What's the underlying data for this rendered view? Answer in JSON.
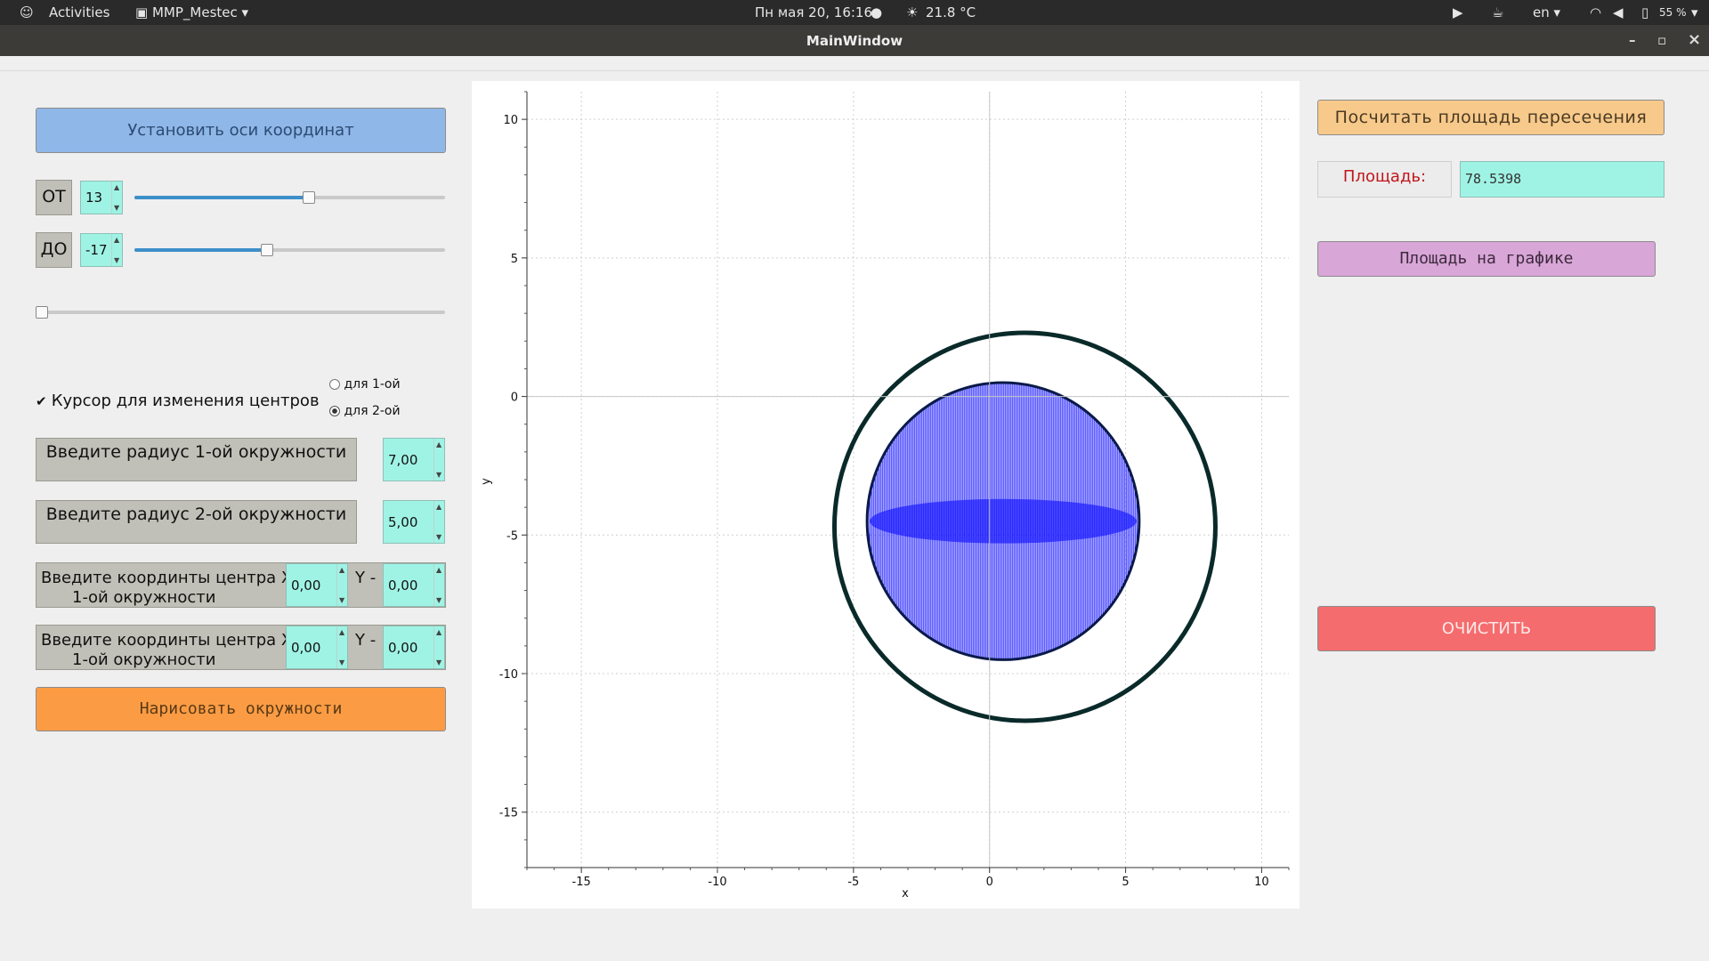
{
  "topbar": {
    "activities": "Activities",
    "app_menu": "MMP_Mestec",
    "datetime": "Пн мая 20, 16:16",
    "weather": "21.8 °C",
    "lang": "en",
    "battery": "55 %"
  },
  "window": {
    "title": "MainWindow",
    "minimize": "–",
    "maximize": "▫",
    "close": "×"
  },
  "left": {
    "set_axes_button": "Установить оси координат",
    "from_label": "ОТ",
    "from_value": "13",
    "from_slider_fraction": 0.56,
    "to_label": "ДО",
    "to_value": "-17",
    "to_slider_fraction": 0.42,
    "extra_slider_fraction": 0.0,
    "cursor_checkbox_label": "Курсор для изменения центров",
    "cursor_checked": true,
    "radio1_label": "для 1-ой",
    "radio2_label": "для 2-ой",
    "radio_selected": 2,
    "radius1_label": "Введите радиус 1-ой окружности",
    "radius1_value": "7,00",
    "radius2_label": "Введите радиус 2-ой окружности",
    "radius2_value": "5,00",
    "center1_label_line1": "Введите координты центра  X  -",
    "center1_label_line2": "1-ой окружности",
    "center1_x": "0,00",
    "center1_y_label": "Y -",
    "center1_y": "0,00",
    "center2_label_line1": "Введите координты центра  X  -",
    "center2_label_line2": "1-ой окружности",
    "center2_x": "0,00",
    "center2_y_label": "Y -",
    "center2_y": "0,00",
    "draw_button": "Нарисовать окружности"
  },
  "right": {
    "calc_button": "Посчитать площадь пересечения",
    "area_label": "Площадь:",
    "area_value": "78.5398",
    "area_on_plot_button": "Площадь на графике",
    "clear_button": "ОЧИСТИТЬ"
  },
  "colors": {
    "set_axes_bg": "#8fb7e8",
    "calc_bg": "#f7c98a",
    "area_label_color": "#c0161b",
    "area_field_bg": "#9ff3e4",
    "area_plot_bg": "#d9a6d8",
    "clear_bg": "#f56c6e",
    "draw_bg": "#fb9c44",
    "circle_outline": "#0a2a2a",
    "fill_blue": "#0000ff"
  },
  "chart_data": {
    "type": "scatter",
    "xlabel": "x",
    "ylabel": "y",
    "xlim": [
      -17,
      11
    ],
    "ylim": [
      -17,
      11
    ],
    "x_ticks": [
      -15,
      -10,
      -5,
      0,
      5,
      10
    ],
    "y_ticks": [
      10,
      5,
      0,
      -5,
      -10,
      -15
    ],
    "grid": true,
    "circles": [
      {
        "name": "",
        "cx": 1.3,
        "cy": -4.7,
        "r": 7.0,
        "style": "outline"
      },
      {
        "name": "",
        "cx": 0.5,
        "cy": -4.5,
        "r": 5.0,
        "style": "filled-vertical-lines"
      }
    ]
  }
}
